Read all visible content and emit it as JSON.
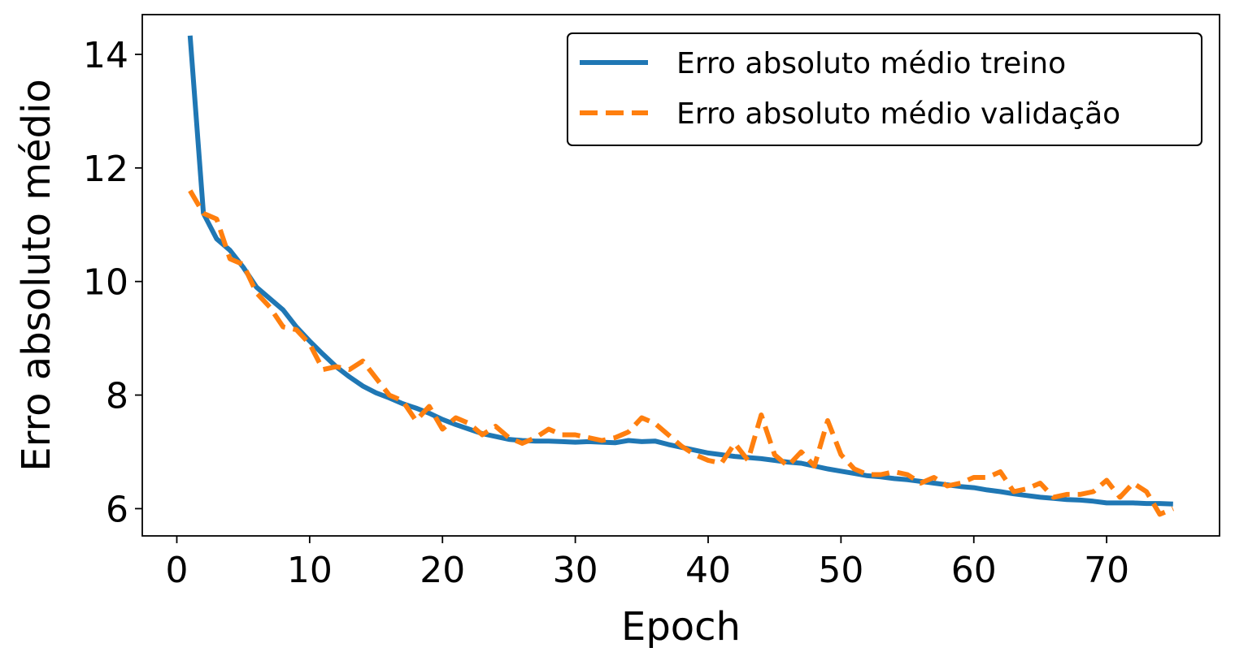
{
  "chart_data": {
    "type": "line",
    "title": "",
    "xlabel": "Epoch",
    "ylabel": "Erro absoluto médio",
    "xlim": [
      -2.6,
      78.5
    ],
    "ylim": [
      5.52,
      14.7
    ],
    "xticks": [
      0,
      10,
      20,
      30,
      40,
      50,
      60,
      70
    ],
    "yticks": [
      6,
      8,
      10,
      12,
      14
    ],
    "grid": false,
    "legend_position": "top-right",
    "x": [
      1,
      2,
      3,
      4,
      5,
      6,
      7,
      8,
      9,
      10,
      11,
      12,
      13,
      14,
      15,
      16,
      17,
      18,
      19,
      20,
      21,
      22,
      23,
      24,
      25,
      26,
      27,
      28,
      29,
      30,
      31,
      32,
      33,
      34,
      35,
      36,
      37,
      38,
      39,
      40,
      41,
      42,
      43,
      44,
      45,
      46,
      47,
      48,
      49,
      50,
      51,
      52,
      53,
      54,
      55,
      56,
      57,
      58,
      59,
      60,
      61,
      62,
      63,
      64,
      65,
      66,
      67,
      68,
      69,
      70,
      71,
      72,
      73,
      74,
      75
    ],
    "series": [
      {
        "name": "Erro absoluto médio treino",
        "color": "#1f77b4",
        "style": "solid",
        "values": [
          14.33,
          11.2,
          10.75,
          10.55,
          10.25,
          9.9,
          9.7,
          9.5,
          9.2,
          8.95,
          8.72,
          8.5,
          8.32,
          8.16,
          8.04,
          7.95,
          7.85,
          7.77,
          7.68,
          7.57,
          7.48,
          7.4,
          7.32,
          7.27,
          7.22,
          7.2,
          7.19,
          7.19,
          7.18,
          7.17,
          7.18,
          7.17,
          7.16,
          7.2,
          7.18,
          7.19,
          7.13,
          7.08,
          7.03,
          6.98,
          6.95,
          6.92,
          6.9,
          6.88,
          6.85,
          6.82,
          6.8,
          6.75,
          6.7,
          6.66,
          6.62,
          6.58,
          6.56,
          6.53,
          6.51,
          6.48,
          6.45,
          6.42,
          6.39,
          6.37,
          6.33,
          6.3,
          6.26,
          6.23,
          6.2,
          6.18,
          6.16,
          6.15,
          6.13,
          6.1,
          6.1,
          6.1,
          6.09,
          6.09,
          6.08
        ]
      },
      {
        "name": "Erro absoluto médio validação",
        "color": "#ff7f0e",
        "style": "dashed",
        "values": [
          11.6,
          11.2,
          11.1,
          10.4,
          10.3,
          9.8,
          9.55,
          9.2,
          9.15,
          8.9,
          8.45,
          8.5,
          8.45,
          8.6,
          8.3,
          8.0,
          7.9,
          7.55,
          7.8,
          7.4,
          7.6,
          7.5,
          7.3,
          7.45,
          7.25,
          7.15,
          7.25,
          7.4,
          7.3,
          7.3,
          7.25,
          7.2,
          7.25,
          7.35,
          7.6,
          7.5,
          7.3,
          7.1,
          6.95,
          6.85,
          6.8,
          7.15,
          6.85,
          7.65,
          6.95,
          6.75,
          7.0,
          6.75,
          7.55,
          6.95,
          6.7,
          6.6,
          6.6,
          6.65,
          6.6,
          6.45,
          6.55,
          6.4,
          6.45,
          6.55,
          6.55,
          6.65,
          6.3,
          6.35,
          6.45,
          6.2,
          6.25,
          6.25,
          6.3,
          6.5,
          6.2,
          6.45,
          6.3,
          5.9,
          6.0
        ]
      }
    ]
  }
}
